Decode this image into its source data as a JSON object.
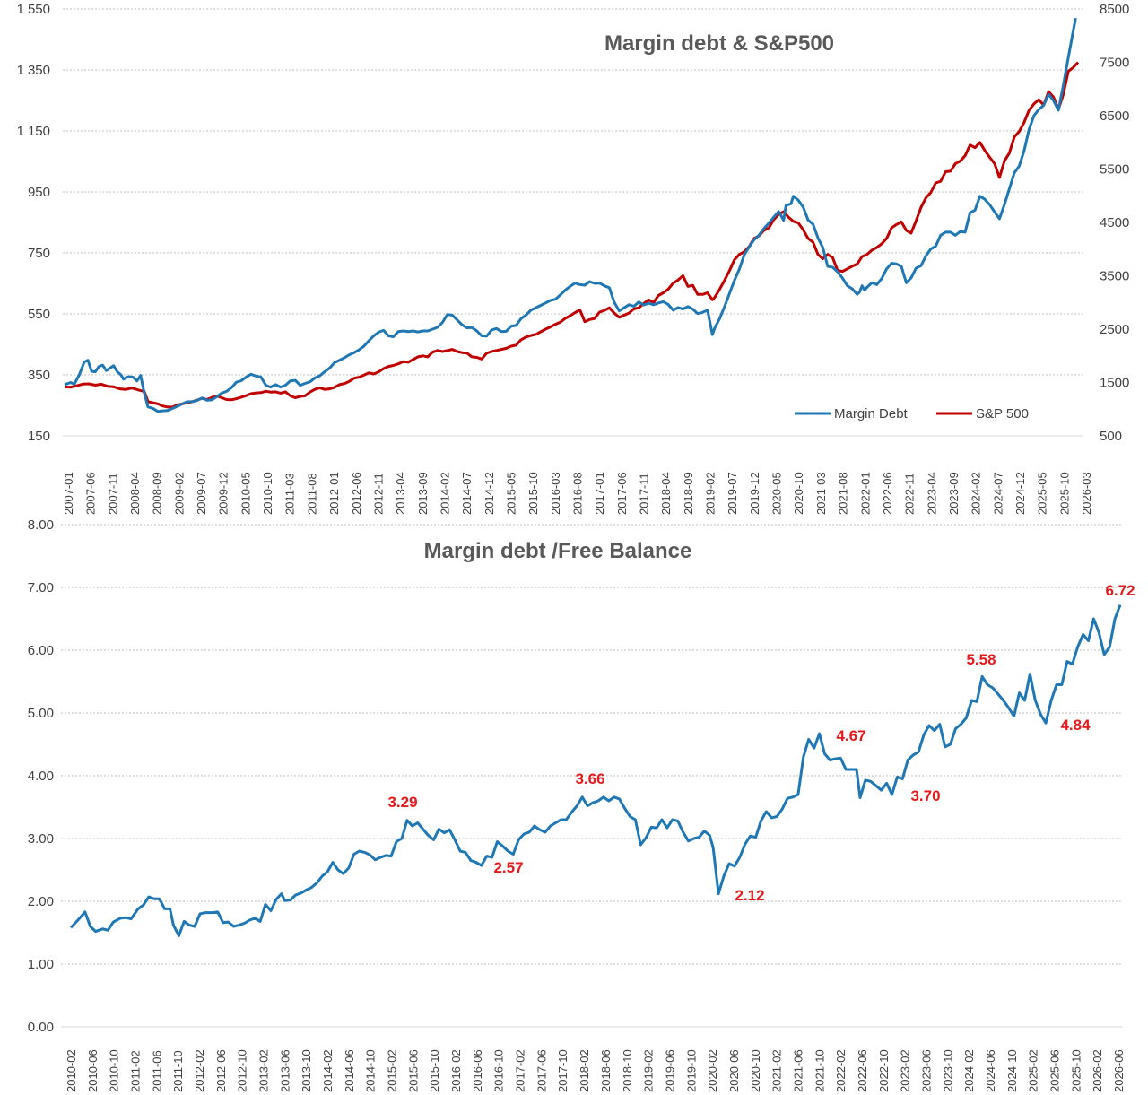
{
  "chart_data": [
    {
      "type": "line",
      "title": "Margin debt & S&P500",
      "ylim_left": [
        150,
        1550
      ],
      "yticks_left": [
        "150",
        "350",
        "550",
        "750",
        "950",
        "1 150",
        "1 350",
        "1 550"
      ],
      "ylim_right": [
        500,
        8500
      ],
      "yticks_right": [
        "500",
        "1500",
        "2500",
        "3500",
        "4500",
        "5500",
        "6500",
        "7500",
        "8500"
      ],
      "x_tick_labels": [
        "2007-01",
        "2007-06",
        "2007-11",
        "2008-04",
        "2008-09",
        "2009-02",
        "2009-07",
        "2009-12",
        "2010-05",
        "2010-10",
        "2011-03",
        "2011-08",
        "2012-01",
        "2012-06",
        "2012-11",
        "2013-04",
        "2013-09",
        "2014-02",
        "2014-07",
        "2014-12",
        "2015-05",
        "2015-10",
        "2016-03",
        "2016-08",
        "2017-01",
        "2017-06",
        "2017-11",
        "2018-04",
        "2018-09",
        "2019-02",
        "2019-07",
        "2019-12",
        "2020-05",
        "2020-10",
        "2021-03",
        "2021-08",
        "2022-01",
        "2022-06",
        "2022-11",
        "2023-04",
        "2023-09",
        "2024-02",
        "2024-07",
        "2024-12",
        "2025-05",
        "2025-10",
        "2026-03"
      ],
      "grid": true,
      "legend_position": "bottom-right",
      "series": [
        {
          "name": "Margin Debt",
          "axis": "left",
          "color": "#1f77b4",
          "x": [
            0,
            2,
            4,
            6,
            8,
            9,
            10,
            12,
            14,
            16,
            18,
            20,
            22,
            24,
            26,
            28,
            30,
            32,
            34,
            36,
            38,
            40,
            42,
            44,
            46,
            48,
            50,
            52,
            54,
            56,
            58,
            60,
            62,
            64,
            66,
            68,
            70,
            72,
            74,
            76,
            78,
            80,
            82,
            84,
            86,
            88,
            90,
            92,
            94,
            96,
            98,
            100,
            102,
            104,
            106,
            108,
            110,
            112,
            114,
            116,
            118,
            120,
            122,
            124,
            126,
            128,
            130,
            132,
            134,
            136,
            138,
            140,
            142,
            144,
            146,
            148,
            150,
            152,
            154,
            156,
            158,
            160,
            162,
            164,
            166,
            168,
            170,
            172,
            174,
            176,
            178,
            180,
            182,
            184,
            186,
            188,
            190,
            192,
            194,
            196,
            198,
            200,
            202,
            204,
            206,
            208,
            210,
            212,
            214,
            216,
            218,
            220,
            222,
            224,
            226,
            228,
            230,
            232,
            234,
            236,
            238,
            240,
            242,
            244,
            246,
            248,
            250,
            252,
            254,
            256,
            258,
            260,
            262,
            264,
            266,
            268,
            270,
            272,
            274,
            276,
            278,
            280,
            282,
            284,
            286,
            288,
            290,
            292,
            294,
            296,
            298,
            300,
            302,
            304,
            306,
            308,
            310,
            312,
            314,
            316,
            318,
            320,
            322,
            324,
            326,
            328,
            330,
            332,
            334,
            336,
            338,
            340,
            342,
            344,
            346,
            348,
            350,
            352,
            354,
            356,
            358,
            360,
            362,
            364,
            366,
            368,
            370,
            372,
            374,
            376,
            378,
            380,
            382,
            384,
            386,
            388,
            390,
            392,
            394,
            396,
            398,
            400,
            402,
            404,
            406,
            408,
            410,
            412,
            414,
            416,
            418,
            420,
            422,
            424,
            426,
            428,
            430,
            432,
            434,
            436,
            438,
            440,
            442,
            444,
            446,
            448,
            450,
            452,
            454,
            456,
            458,
            460,
            462,
            464,
            466,
            468,
            470,
            472,
            474,
            476,
            478,
            480,
            482,
            484,
            486,
            488,
            490,
            492,
            494,
            496,
            498,
            500,
            502,
            504,
            506,
            508,
            510,
            512,
            514,
            516,
            518,
            520,
            522,
            524,
            526,
            528,
            530,
            532,
            534,
            536,
            538,
            540,
            542,
            544,
            546,
            548,
            550,
            552,
            554,
            556,
            558,
            560,
            562,
            564,
            566,
            568,
            570,
            572,
            574,
            576,
            578,
            580,
            582,
            584,
            586,
            588,
            590,
            592,
            594,
            596,
            598,
            600,
            602,
            604,
            606,
            608,
            610,
            612,
            614,
            616,
            618,
            620,
            622,
            624,
            626,
            628,
            630,
            632,
            634,
            636,
            638,
            640,
            642,
            644,
            646,
            648,
            650,
            652,
            654,
            656,
            658,
            660,
            662,
            664,
            666,
            668,
            670,
            672,
            674,
            676,
            678,
            680,
            682,
            684,
            686,
            688,
            690,
            692,
            694,
            696,
            698,
            700,
            702,
            704,
            706,
            708,
            710,
            712,
            714,
            716,
            718,
            720,
            722,
            724,
            726,
            728,
            730,
            732,
            734,
            736,
            738,
            740,
            742,
            744,
            746,
            748,
            750,
            752,
            754,
            756,
            758,
            760,
            762,
            764,
            766,
            768,
            770,
            772,
            774,
            776,
            778,
            780,
            782,
            784,
            786,
            788,
            790,
            792,
            794,
            796,
            798,
            800,
            802,
            804,
            806,
            808,
            810,
            812,
            814,
            816,
            818,
            820,
            822,
            824,
            826,
            828,
            830,
            832,
            834,
            836,
            838,
            840,
            842,
            844,
            846,
            848,
            850,
            852,
            854,
            856,
            858,
            860,
            862,
            864,
            866,
            868,
            870,
            872,
            874,
            876,
            878,
            880,
            882,
            884,
            886,
            888,
            890,
            892,
            894,
            896,
            898,
            900,
            902,
            904,
            906,
            908,
            910,
            912,
            914,
            916,
            918,
            920,
            922,
            924,
            926,
            928,
            930,
            932,
            934,
            936,
            938,
            940,
            942,
            944,
            946,
            948,
            950,
            952,
            954,
            956,
            958,
            960,
            962,
            964,
            966,
            968,
            970,
            972,
            974,
            976,
            978,
            980,
            982,
            984,
            986,
            988,
            990,
            992,
            994,
            996,
            998,
            1000,
            1002,
            1004,
            1006,
            1008,
            1010,
            1012,
            1014,
            1016,
            1018,
            1020,
            1022,
            1024,
            1026,
            1028,
            1030,
            1032,
            1034,
            1036,
            1038,
            1040,
            1042,
            1044,
            1046,
            1048,
            1050,
            1052,
            1054,
            1056,
            1058,
            1060,
            1062,
            1064,
            1066,
            1068,
            1070,
            1072,
            1074,
            1076,
            1078,
            1080,
            1082,
            1084,
            1086,
            1088,
            1090,
            1092,
            1094,
            1096,
            1098,
            1100,
            1102,
            1104,
            1106,
            1108,
            1110,
            1112,
            1114,
            1116,
            1118,
            1120,
            1122,
            1124,
            1126,
            1128,
            1130,
            1132,
            1134,
            1136,
            1138,
            1140,
            1142,
            1144,
            1146,
            1148,
            1150,
            1152,
            1154,
            1156,
            1158,
            1160,
            1162,
            1164,
            1166,
            1168,
            1170,
            1172,
            1174,
            1176,
            1178,
            1180,
            1182,
            1184,
            1186,
            1188,
            1190,
            1192,
            1194,
            1196,
            1198,
            1200
          ],
          "x_note_unused": true,
          "points": []
        }
      ]
    }
  ]
}
